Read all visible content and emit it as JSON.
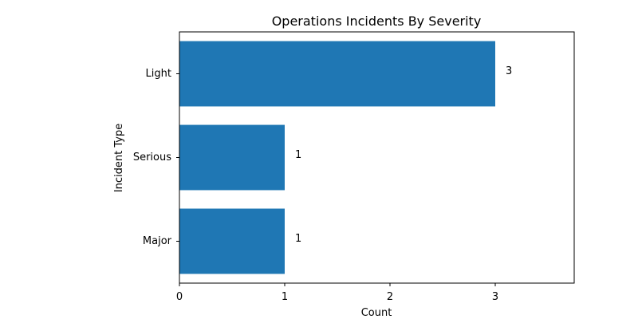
{
  "chart_data": {
    "type": "bar",
    "orientation": "horizontal",
    "title": "Operations Incidents By Severity",
    "xlabel": "Count",
    "ylabel": "Incident Type",
    "categories": [
      "Light",
      "Serious",
      "Major"
    ],
    "values": [
      3,
      1,
      1
    ],
    "data_labels": [
      "3",
      "1",
      "1"
    ],
    "xlim": [
      0,
      3.75
    ],
    "xticks": [
      0,
      1,
      2,
      3
    ],
    "xtick_labels": [
      "0",
      "1",
      "2",
      "3"
    ],
    "bar_color": "#1f77b4",
    "grid": false,
    "legend": "none"
  }
}
